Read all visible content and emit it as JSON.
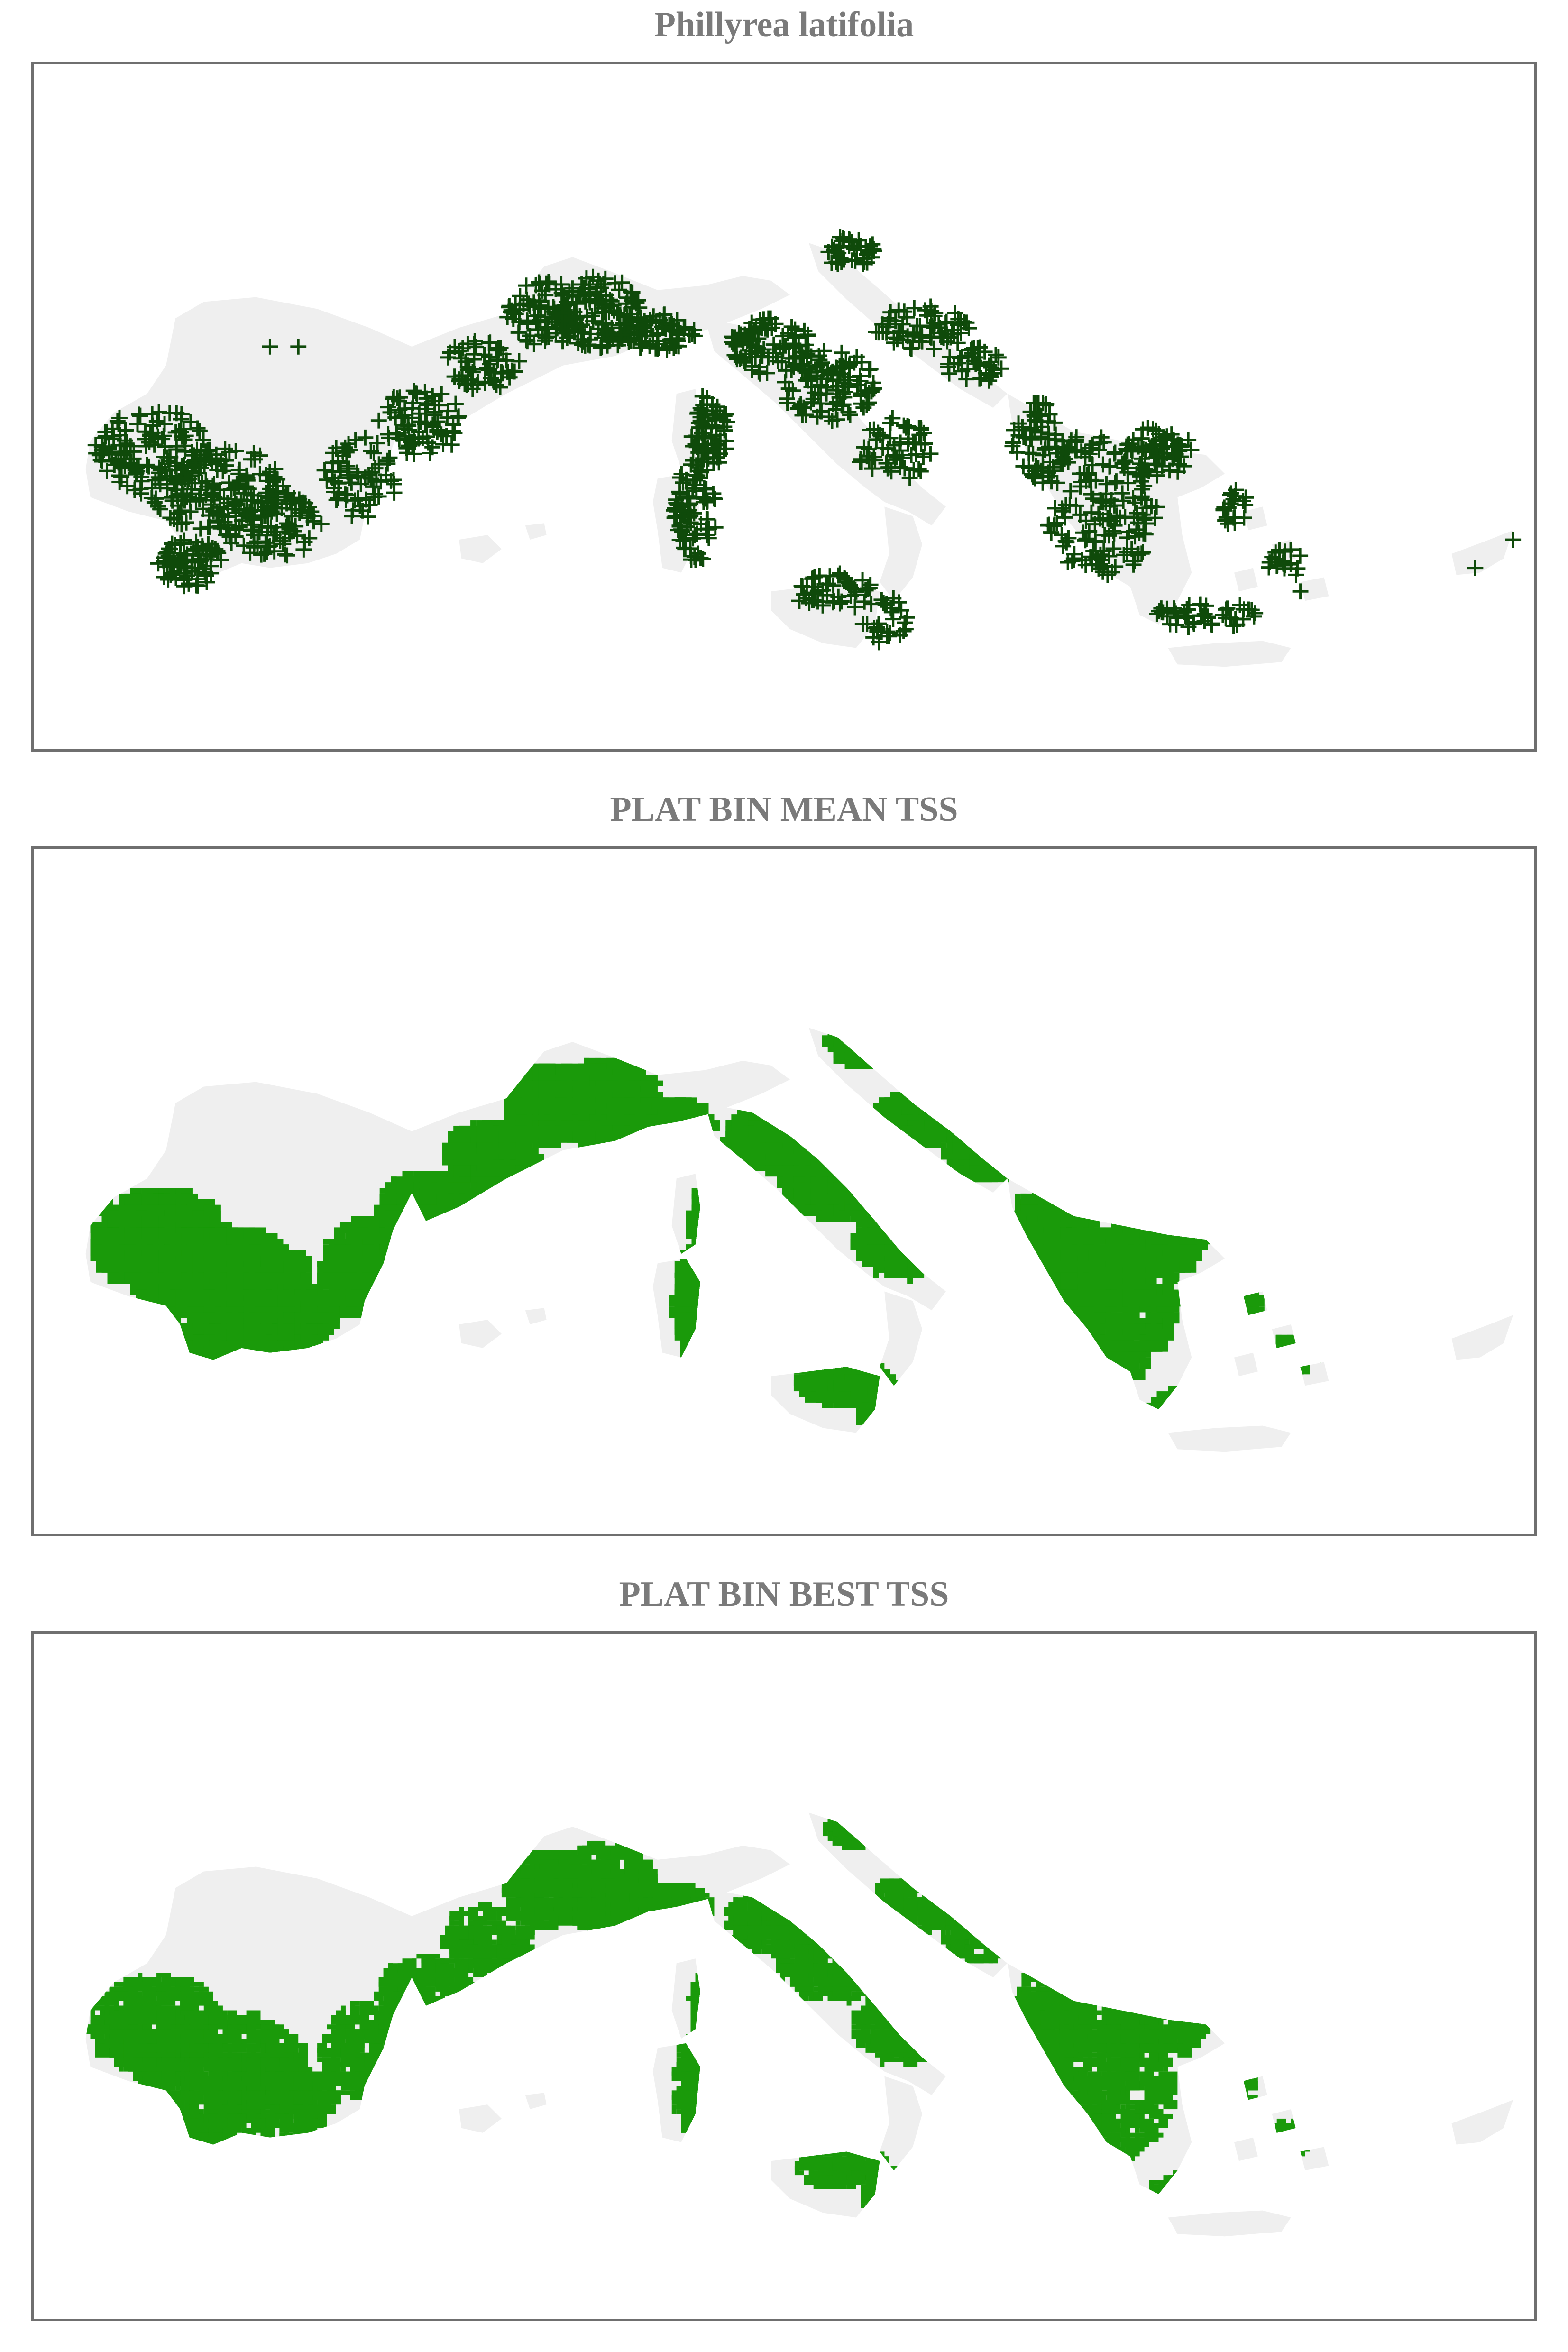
{
  "panels": [
    {
      "id": "occurrences",
      "title": "Phillyrea latifolia",
      "layer": "occurrence-points",
      "marker": "plus"
    },
    {
      "id": "mean",
      "title": "PLAT BIN MEAN TSS",
      "layer": "binary-prediction"
    },
    {
      "id": "best",
      "title": "PLAT BIN BEST TSS",
      "layer": "binary-prediction"
    }
  ],
  "colors": {
    "land": "#efefef",
    "points": "#0f4a0a",
    "presence": "#1a9a0a",
    "frame": "#6f6f6f",
    "title": "#7a7a7a"
  }
}
